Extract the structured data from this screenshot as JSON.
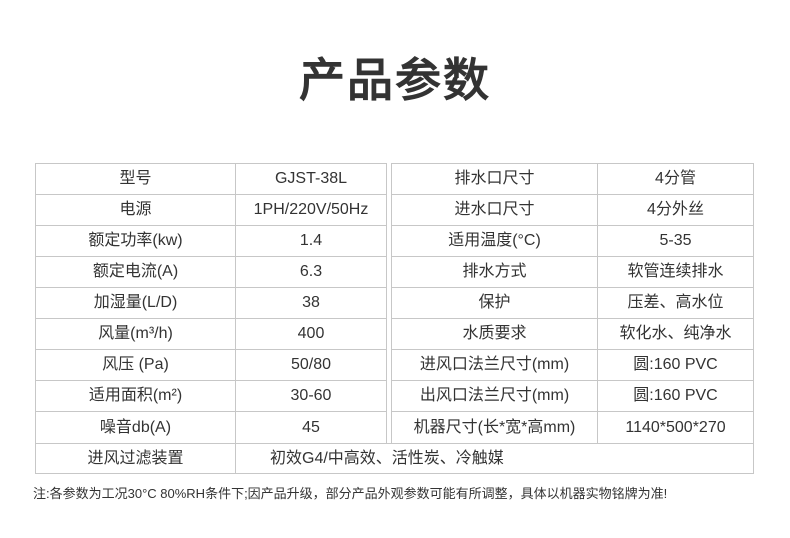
{
  "title": "产品参数",
  "note": "注:各参数为工况30°C  80%RH条件下;因产品升级，部分产品外观参数可能有所调整，具体以机器实物铭牌为准!",
  "colors": {
    "border": "#c7c7c7",
    "text": "#333333"
  },
  "specs": {
    "left": [
      {
        "label": "型号",
        "value": "GJST-38L"
      },
      {
        "label": "电源",
        "value": "1PH/220V/50Hz"
      },
      {
        "label": "额定功率(kw)",
        "value": "1.4"
      },
      {
        "label": "额定电流(A)",
        "value": "6.3"
      },
      {
        "label": "加湿量(L/D)",
        "value": "38"
      },
      {
        "label": "风量(m³/h)",
        "value": "400"
      },
      {
        "label": "风压 (Pa)",
        "value": "50/80"
      },
      {
        "label": "适用面积(m²)",
        "value": "30-60"
      },
      {
        "label": "噪音db(A)",
        "value": "45"
      }
    ],
    "right": [
      {
        "label": "排水口尺寸",
        "value": "4分管"
      },
      {
        "label": "进水口尺寸",
        "value": "4分外丝"
      },
      {
        "label": "适用温度(°C)",
        "value": "5-35"
      },
      {
        "label": "排水方式",
        "value": "软管连续排水"
      },
      {
        "label": "保护",
        "value": "压差、高水位"
      },
      {
        "label": "水质要求",
        "value": "软化水、纯净水"
      },
      {
        "label": "进风口法兰尺寸(mm)",
        "value": "圆:160 PVC"
      },
      {
        "label": "出风口法兰尺寸(mm)",
        "value": "圆:160 PVC"
      },
      {
        "label": "机器尺寸(长*宽*高mm)",
        "value": "1140*500*270"
      }
    ],
    "bottom": {
      "label": "进风过滤装置",
      "value": "初效G4/中高效、活性炭、冷触媒"
    }
  }
}
